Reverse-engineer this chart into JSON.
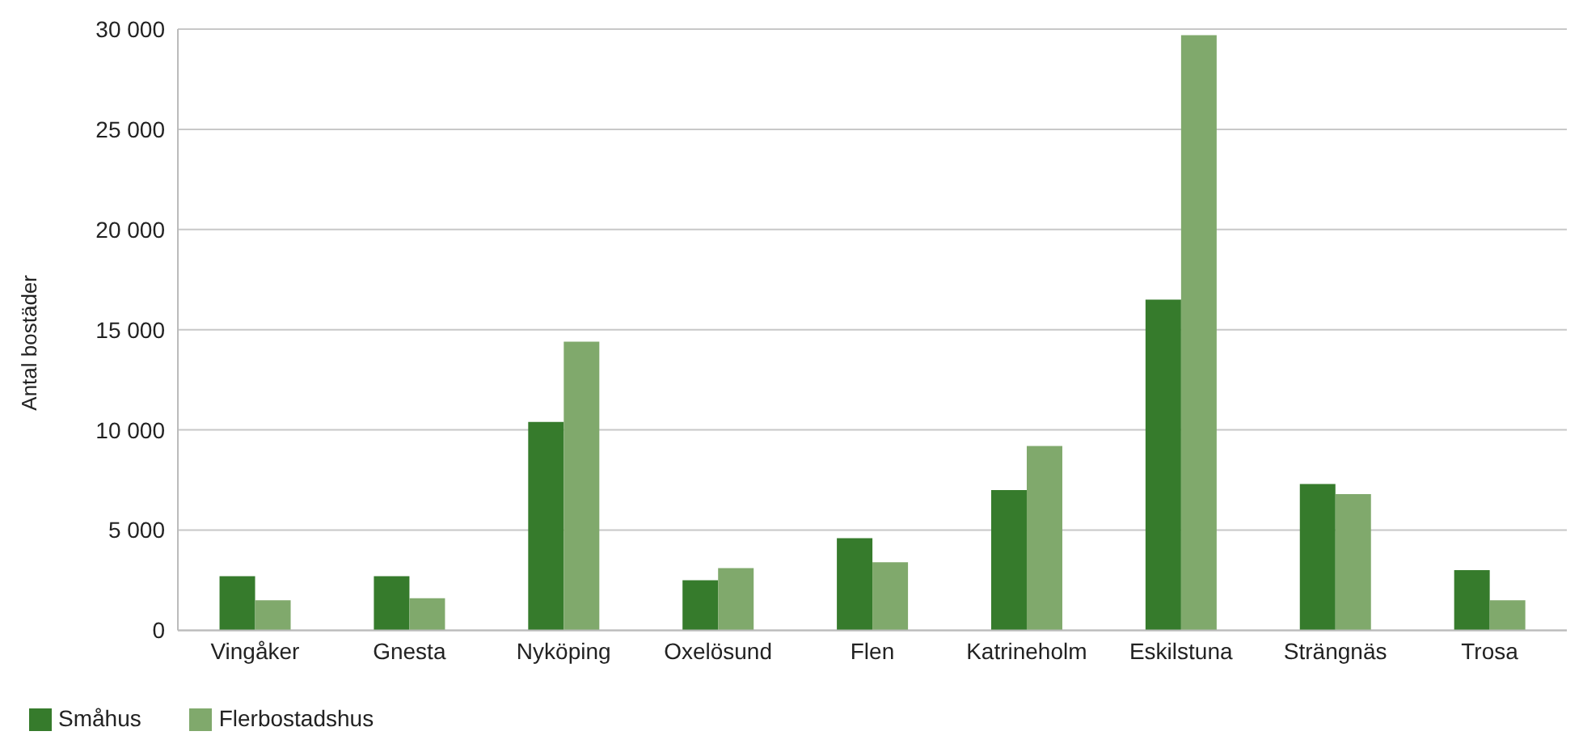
{
  "chart_data": {
    "type": "bar",
    "ylabel": "Antal bostäder",
    "categories": [
      "Vingåker",
      "Gnesta",
      "Nyköping",
      "Oxelösund",
      "Flen",
      "Katrineholm",
      "Eskilstuna",
      "Strängnäs",
      "Trosa"
    ],
    "series": [
      {
        "name": "Småhus",
        "color": "#367b2c",
        "values": [
          2700,
          2700,
          10400,
          2500,
          4600,
          7000,
          16500,
          7300,
          3000
        ]
      },
      {
        "name": "Flerbostadshus",
        "color": "#80a96c",
        "values": [
          1500,
          1600,
          14400,
          3100,
          3400,
          9200,
          29700,
          6800,
          1500
        ]
      }
    ],
    "ylim": [
      0,
      30000
    ],
    "yticks": [
      {
        "value": 0,
        "label": "0"
      },
      {
        "value": 5000,
        "label": "5 000"
      },
      {
        "value": 10000,
        "label": "10 000"
      },
      {
        "value": 15000,
        "label": "15 000"
      },
      {
        "value": 20000,
        "label": "20 000"
      },
      {
        "value": 25000,
        "label": "25 000"
      },
      {
        "value": 30000,
        "label": "30 000"
      }
    ],
    "grid": "y",
    "legend": "bottom left"
  }
}
